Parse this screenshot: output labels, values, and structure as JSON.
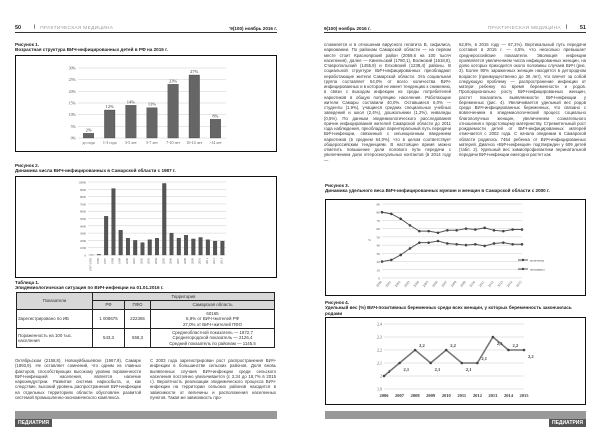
{
  "left_page": {
    "page_number": "50",
    "journal": "ПРАКТИЧЕСКАЯ МЕДИЦИНА",
    "issue": "'9(100) ноябрь 2016 г.",
    "footer_label": "ПЕДИАТРИЯ",
    "figure1": {
      "label": "Рисунок 1.",
      "title": "Возрастная структура ВИЧ-инфицированных детей в РФ на 2015 г."
    },
    "figure2": {
      "label": "Рисунок 2.",
      "title": "Динамика числа ВИЧ-инфицированных в Самарской области с 1987 г."
    },
    "table1": {
      "label": "Таблица 1.",
      "title": "Эпидемиологическая ситуация по ВИЧ-инфекции на 01.01.2016 г.",
      "col_indicators": "Показатели",
      "col_territory": "Территория",
      "sub_cols": [
        "РФ",
        "ПФО",
        "Самарская область"
      ],
      "rows": [
        {
          "label": "Зарегистрировано по ИБ",
          "rf": "1 008675",
          "pfo": "222365",
          "samara": [
            "60165",
            "5,9% от ВИЧ+жителей РФ",
            "27,0% от ВИЧ+жителей ПФО"
          ]
        },
        {
          "label": "Пораженность на 100 тыс. населения",
          "rf": "543,3",
          "pfo": "558,3",
          "samara": [
            "Среднеобластной показатель — 1872,7",
            "Среднегородской показатель — 2126,4",
            "Средний показатель по районам — 1145,5"
          ]
        }
      ]
    },
    "text_col1": "Октябрьском (2158,8), Новокуйбышевске (1967,9), Самаре (1893,9). Не оставляет сомнений, что одним из главных факторов, способствующих высокому уровню пораженности ВИЧ-инфекцией населения, является наличие наркоиндустрии. Развитая система наркосбыта, и, как следствие, высокий уровень распространения ВИЧ-инфекции на отдельных территориях области обусловлен развитой системой промышленно-экономического комплекса.",
    "text_col2": "С 2003 года зарегистрирован рост распространения ВИЧ-инфекции в большинстве сельских районов. Доля вновь выявленных случаев ВИЧ-инфекции среди сельского населения постоянно увеличивается (с 3,34 до 18,7% в 2015 г.). Вероятность реализации эпидемического процесса ВИЧ-инфекции на территории сельских районов находится в зависимости от величины и расположения населенных пунктов. Такая же зависимость про-"
  },
  "right_page": {
    "page_number": "51",
    "journal": "ПРАКТИЧЕСКАЯ МЕДИЦИНА",
    "issue": "9(100) ноябрь 2016 г.",
    "footer_label": "ПЕДИАТРИЯ",
    "text_col1": "сложняется и в отношении вирусного гепатита В, сифилиса, наркомании. По районам Самарской области — на первом месте стоит Красноярский район (2059,6 на 100 тысяч населения), далее — Кинельский (1780,1), Волжский (1518,8), Ставропольский (1455,9) и Елховский (1238,4) районы. В социальной структуре ВИЧ-инфицированных преобладают неработающие жители Самарской области. Эта социальная группа составляет 54,0% от всего количества ВИЧ-инфицированных и в которой не имеет тенденцию к снижению, в связи с выходом инфекции из среды потребителей наркотиков в общую популяцию населения. Работающие жители Самары составили 40,0%. Оставшиеся 6,0% — студенты (1,9%), учащиеся средних специальных учебных заведений и школ (2,4%), дошкольники (1,2%), инвалиды (0,5%). По данным эпидемиологического расследования причин инфицирования жителей Самарской области до 2011 года наблюдения, преобладал парентеральный путь передачи ВИЧ-инфекции, связанный с инъекционным введением наркотиков (в среднем 64,0%), что в целом соответствует общероссийским тенденциям. В настоящее время можно отметить повышение доли полового пути передачи с увеличением доли гетеросексуальных контактов (в 2014 году —",
    "text_col2": "62,8%, в 2015 году — 67,1%). Вертикальный путь передачи составил в 2015 г. — 4,5%, что несколько превышает среднероссийские показатели. Эволюция инфекции проявляется увеличением числа инфицированных женщин, на долю которых приходится около половины случаев ВИЧ (рис. 3). Более 90% зараженных женщин находятся в детородном возрасте (преимущественно до 35 лет), что влечет за собой следующую проблему — распространение инфекции от матери ребенку во время беременности и родов. Пропорционально росту ВИЧ-инфицированных женщин, растет показатель выявляемости ВИЧ-инфекции у беременных (рис. 4). Увеличивается удельный вес родов среди ВИЧ-инфицированных беременных, что связано с вовлечением в эпидемиологический процесс социально благополучных женщин, увеличением сознательного отношения к предстоящему материнству. Стремительный рост рождаемости детей от ВИЧ-инфицированных матерей отмечается с 2002 года. С начала эпидемии в Самарской области родилось 7464 ребенка от ВИЧ-инфицированных матерей. Диагноз «ВИЧ-инфекция» подтвержден у 609 детей (табл. 2). Удельный вес химиопрофилактики перинатальной передачи ВИЧ-инфекции ежегодно растет как",
    "figure3": {
      "label": "Рисунок 3.",
      "title": "Динамика удельного веса ВИЧ-инфицированных мужчин и женщин в Самарской области с 2000 г."
    },
    "figure4": {
      "label": "Рисунок 4.",
      "title": "Удельный вес (%) ВИЧ-позитивных беременных среди всех женщин, у которых беременность закончилась родами"
    }
  },
  "chart_data": [
    {
      "type": "bar",
      "categories": [
        "до года",
        "1-3 года",
        "3-5 лет",
        "5-7 лет",
        "7-10 лет",
        "10-14 лет",
        ">14 лет"
      ],
      "values": [
        2,
        12,
        14,
        13,
        23,
        27,
        8
      ],
      "data_labels": [
        "2%",
        "12%",
        "14%",
        "13%",
        "23%",
        "27%",
        "8%"
      ],
      "yticks": [
        "0%",
        "5%",
        "10%",
        "15%",
        "20%",
        "25%",
        "30%"
      ],
      "ylim": [
        0,
        30
      ],
      "grid": true,
      "color": "#666666"
    },
    {
      "type": "bar",
      "categories": [
        "1987-1995",
        "1996",
        "1997",
        "1998",
        "1999",
        "2000",
        "2001",
        "2002",
        "2003",
        "2004",
        "2005",
        "2006",
        "2007",
        "2008",
        "2009",
        "2010",
        "2011",
        "2012",
        "2013"
      ],
      "values": [
        9,
        76,
        5300,
        9100,
        3400,
        2300,
        2000,
        1700,
        2100,
        2300,
        9800,
        3000,
        2300,
        2700,
        2200,
        2400,
        2100,
        1900,
        1900
      ],
      "yticks": [
        "0",
        "1000",
        "2000",
        "3000",
        "4000",
        "5000",
        "6000",
        "7000",
        "8000",
        "9000",
        "10000"
      ],
      "ylim": [
        0,
        10000
      ],
      "grid": true,
      "color": "#555555"
    },
    {
      "type": "line",
      "x": [
        "2000",
        "2001",
        "2002",
        "2003",
        "2004",
        "2005",
        "2006",
        "2007",
        "2008",
        "2009",
        "2010",
        "2011",
        "2012",
        "2013",
        "2014",
        "2015"
      ],
      "series": [
        {
          "name": "мужчины",
          "values": [
            80,
            78,
            72,
            64,
            57,
            57,
            55,
            58,
            58,
            60,
            59,
            61,
            58,
            57,
            59,
            59
          ]
        },
        {
          "name": "женщины",
          "values": [
            20,
            22,
            28,
            36,
            43,
            43,
            45,
            42,
            41,
            40,
            41,
            39,
            42,
            43,
            41,
            41
          ]
        }
      ],
      "ylabel": "%",
      "yticks": [
        "0",
        "10",
        "20",
        "30",
        "40",
        "50",
        "60",
        "70",
        "80",
        "90"
      ],
      "ylim": [
        0,
        90
      ],
      "grid": true,
      "legend": "right",
      "color": "#555555"
    },
    {
      "type": "line",
      "x": [
        "2006",
        "2007",
        "2008",
        "2009",
        "2010",
        "2011",
        "2012",
        "2013",
        "2014",
        "2015"
      ],
      "values": [
        2,
        2.1,
        2.2,
        2.1,
        2.2,
        2.1,
        2.1,
        2.3,
        2.2,
        2.2
      ],
      "data_labels": [
        "2",
        "2,1",
        "2,2",
        "2,1",
        "2,2",
        "2,1",
        "2,1",
        "2,3",
        "2,2",
        "2,2"
      ],
      "yticks": [
        "1,9",
        "2",
        "2,1",
        "2,2",
        "2,3",
        "2,4"
      ],
      "ylim": [
        1.9,
        2.4
      ],
      "grid": true,
      "color": "#777777"
    }
  ]
}
